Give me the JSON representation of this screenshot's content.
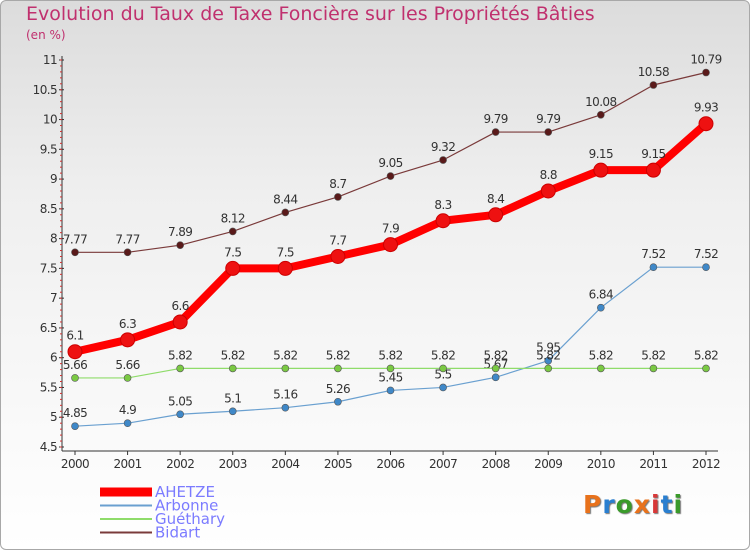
{
  "header": {
    "title": "Evolution du Taux de Taxe Foncière sur les Propriétés Bâties",
    "unit": "(en %)"
  },
  "logo": {
    "text": "Proxiti",
    "colors": [
      "#e8721c",
      "#2a7fd0",
      "#3a9a2a",
      "#e8721c",
      "#d83838",
      "#2a7fd0",
      "#3a9a2a"
    ]
  },
  "chart_data": {
    "type": "line",
    "title": "Evolution du Taux de Taxe Foncière sur les Propriétés Bâties",
    "ylabel": "(en %)",
    "xlabel": "",
    "x": [
      "2000",
      "2001",
      "2002",
      "2003",
      "2004",
      "2005",
      "2006",
      "2007",
      "2008",
      "2009",
      "2010",
      "2011",
      "2012"
    ],
    "ylim": [
      4.5,
      11
    ],
    "yticks": [
      "4.5",
      "5",
      "5.5",
      "6",
      "6.5",
      "7",
      "7.5",
      "8",
      "8.5",
      "9",
      "9.5",
      "10",
      "10.5",
      "11"
    ],
    "legend_position": "bottom-left",
    "grid": false,
    "series": [
      {
        "name": "AHETZE",
        "color": "#ff0000",
        "point_color": "#ee1111",
        "width": "thick",
        "values": [
          6.1,
          6.3,
          6.6,
          7.5,
          7.5,
          7.7,
          7.9,
          8.3,
          8.4,
          8.8,
          9.15,
          9.15,
          9.93
        ],
        "labels": [
          "6.1",
          "6.3",
          "6.6",
          "7.5",
          "7.5",
          "7.7",
          "7.9",
          "8.3",
          "8.4",
          "8.8",
          "9.15",
          "9.15",
          "9.93"
        ]
      },
      {
        "name": "Arbonne",
        "color": "#6aa0d0",
        "point_color": "#3f88c8",
        "width": "thin",
        "values": [
          4.85,
          4.9,
          5.05,
          5.1,
          5.16,
          5.26,
          5.45,
          5.5,
          5.67,
          5.95,
          6.84,
          7.52,
          7.52
        ],
        "labels": [
          "4.85",
          "4.9",
          "5.05",
          "5.1",
          "5.16",
          "5.26",
          "5.45",
          "5.5",
          "5.67",
          "5.95",
          "6.84",
          "7.52",
          "7.52"
        ]
      },
      {
        "name": "Guéthary",
        "color": "#8fdc6a",
        "point_color": "#7ac943",
        "width": "thin",
        "values": [
          5.66,
          5.66,
          5.82,
          5.82,
          5.82,
          5.82,
          5.82,
          5.82,
          5.82,
          5.82,
          5.82,
          5.82,
          5.82
        ],
        "labels": [
          "5.66",
          "5.66",
          "5.82",
          "5.82",
          "5.82",
          "5.82",
          "5.82",
          "5.82",
          "5.82",
          "5.82",
          "5.82",
          "5.82",
          "5.82"
        ]
      },
      {
        "name": "Bidart",
        "color": "#7a3a3a",
        "point_color": "#5a1a1a",
        "width": "thin",
        "values": [
          7.77,
          7.77,
          7.89,
          8.12,
          8.44,
          8.7,
          9.05,
          9.32,
          9.79,
          9.79,
          10.08,
          10.58,
          10.79
        ],
        "labels": [
          "7.77",
          "7.77",
          "7.89",
          "8.12",
          "8.44",
          "8.7",
          "9.05",
          "9.32",
          "9.79",
          "9.79",
          "10.08",
          "10.58",
          "10.79"
        ]
      }
    ]
  }
}
